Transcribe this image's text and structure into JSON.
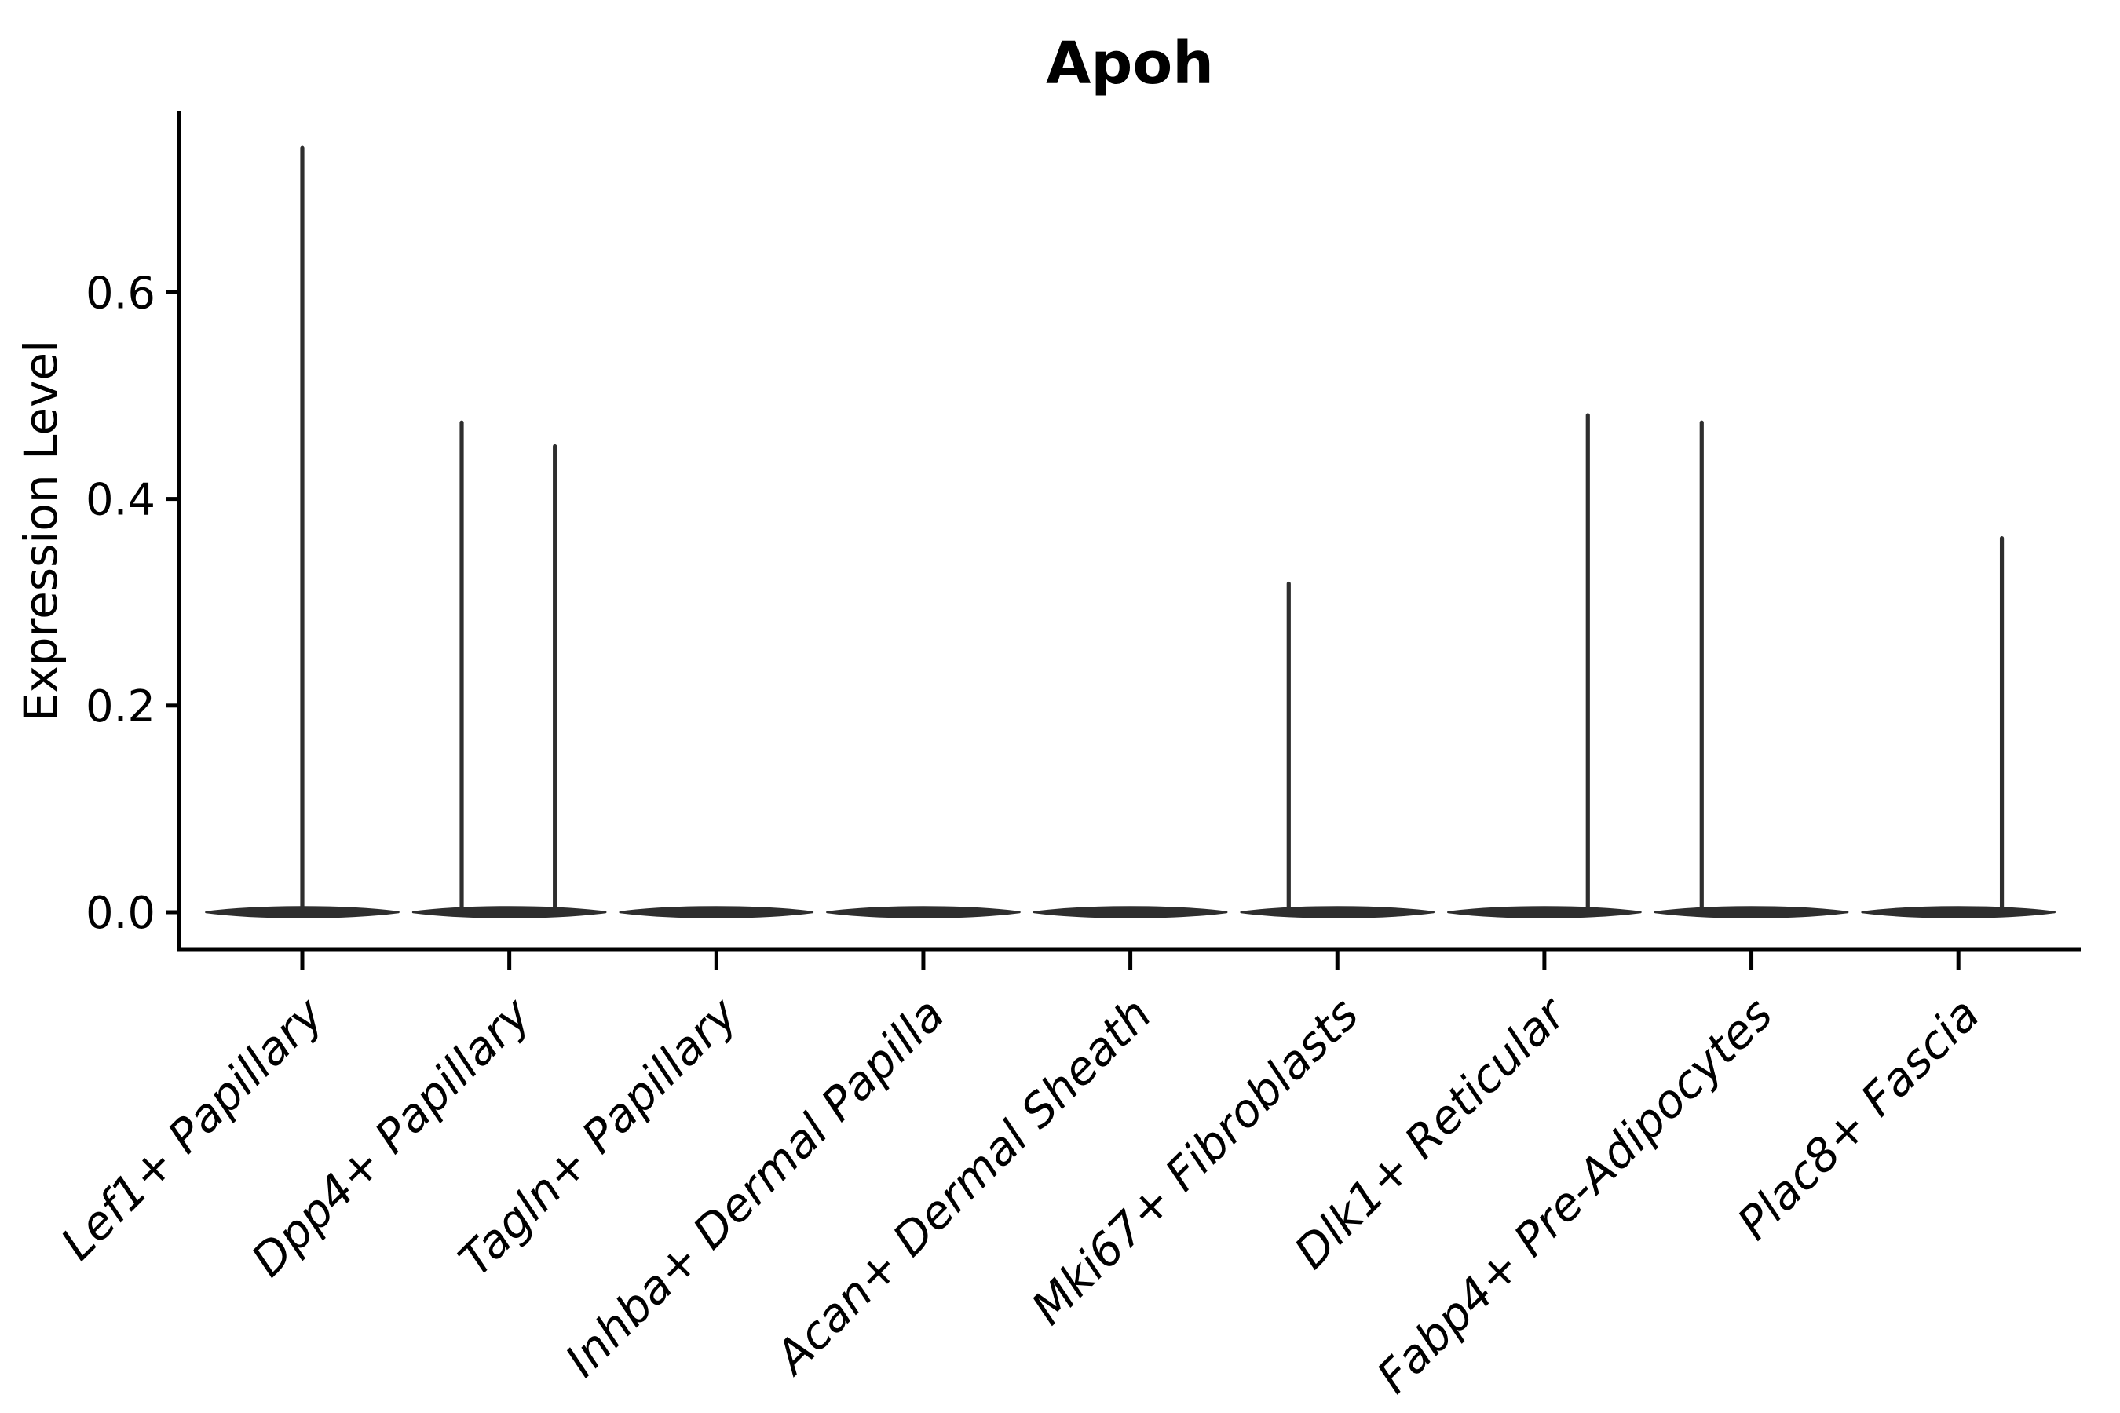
{
  "title": "Apoh",
  "y_axis": {
    "label": "Expression Level",
    "tick_labels": [
      "0.0",
      "0.2",
      "0.4",
      "0.6"
    ],
    "tick_values": [
      0.0,
      0.2,
      0.4,
      0.6
    ]
  },
  "colors": {
    "background": "#ffffff",
    "axis": "#000000",
    "text": "#000000",
    "violin": "#2e2e2e"
  },
  "chart_data": {
    "type": "violin",
    "title": "Apoh",
    "xlabel": "",
    "ylabel": "Expression Level",
    "grid": false,
    "legend": false,
    "ylim": [
      -0.037,
      0.776
    ],
    "y_ticks": [
      0.0,
      0.2,
      0.4,
      0.6
    ],
    "y_tick_labels": [
      "0.0",
      "0.2",
      "0.4",
      "0.6"
    ],
    "categories": [
      "Lef1+ Papillary",
      "Dpp4+ Papillary",
      "Tagln+ Papillary",
      "Inhba+ Dermal Papilla",
      "Acan+ Dermal Sheath",
      "Mki67+ Fibroblasts",
      "Dlk1+ Reticular",
      "Fabp4+ Pre-Adipocytes",
      "Plac8+ Fascia"
    ],
    "description": "Violin plot of Apoh expression; every population has a flat dense body at expression 0, some populations show thin spikes up to the maximum expressing cells.",
    "body_at_zero_all": true,
    "body_width_frac": 0.93,
    "series": [
      {
        "category": "Lef1+ Papillary",
        "body_center": 0.0,
        "spikes": [
          {
            "x_offset_frac": 0.0,
            "max_value": 0.74
          }
        ]
      },
      {
        "category": "Dpp4+ Papillary",
        "body_center": 0.0,
        "spikes": [
          {
            "x_offset_frac": -0.23,
            "max_value": 0.474
          },
          {
            "x_offset_frac": 0.22,
            "max_value": 0.451
          }
        ]
      },
      {
        "category": "Tagln+ Papillary",
        "body_center": 0.0,
        "spikes": []
      },
      {
        "category": "Inhba+ Dermal Papilla",
        "body_center": 0.0,
        "spikes": []
      },
      {
        "category": "Acan+ Dermal Sheath",
        "body_center": 0.0,
        "spikes": []
      },
      {
        "category": "Mki67+ Fibroblasts",
        "body_center": 0.0,
        "spikes": [
          {
            "x_offset_frac": -0.235,
            "max_value": 0.318
          }
        ]
      },
      {
        "category": "Dlk1+ Reticular",
        "body_center": 0.0,
        "spikes": [
          {
            "x_offset_frac": 0.21,
            "max_value": 0.481
          }
        ]
      },
      {
        "category": "Fabp4+ Pre-Adipocytes",
        "body_center": 0.0,
        "spikes": [
          {
            "x_offset_frac": -0.24,
            "max_value": 0.474
          }
        ]
      },
      {
        "category": "Plac8+ Fascia",
        "body_center": 0.0,
        "spikes": [
          {
            "x_offset_frac": 0.21,
            "max_value": 0.362
          }
        ]
      }
    ]
  }
}
